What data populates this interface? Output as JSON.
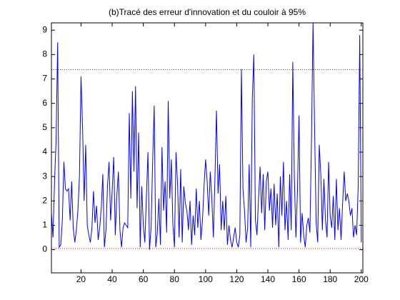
{
  "chart_data": {
    "type": "line",
    "title": "(b)Tracé des erreur d'innovation et du couloir à 95%",
    "x": [
      1,
      2,
      3,
      4,
      5,
      6,
      7,
      8,
      9,
      10,
      11,
      12,
      13,
      14,
      15,
      16,
      17,
      18,
      19,
      20,
      21,
      22,
      23,
      24,
      25,
      26,
      27,
      28,
      29,
      30,
      31,
      32,
      33,
      34,
      35,
      36,
      37,
      38,
      39,
      40,
      41,
      42,
      43,
      44,
      45,
      46,
      47,
      48,
      49,
      50,
      51,
      52,
      53,
      54,
      55,
      56,
      57,
      58,
      59,
      60,
      61,
      62,
      63,
      64,
      65,
      66,
      67,
      68,
      69,
      70,
      71,
      72,
      73,
      74,
      75,
      76,
      77,
      78,
      79,
      80,
      81,
      82,
      83,
      84,
      85,
      86,
      87,
      88,
      89,
      90,
      91,
      92,
      93,
      94,
      95,
      96,
      97,
      98,
      99,
      100,
      101,
      102,
      103,
      104,
      105,
      106,
      107,
      108,
      109,
      110,
      111,
      112,
      113,
      114,
      115,
      116,
      117,
      118,
      119,
      120,
      121,
      122,
      123,
      124,
      125,
      126,
      127,
      128,
      129,
      130,
      131,
      132,
      133,
      134,
      135,
      136,
      137,
      138,
      139,
      140,
      141,
      142,
      143,
      144,
      145,
      146,
      147,
      148,
      149,
      150,
      151,
      152,
      153,
      154,
      155,
      156,
      157,
      158,
      159,
      160,
      161,
      162,
      163,
      164,
      165,
      166,
      167,
      168,
      169,
      170,
      171,
      172,
      173,
      174,
      175,
      176,
      177,
      178,
      179,
      180,
      181,
      182,
      183,
      184,
      185,
      186,
      187,
      188,
      189,
      190,
      191,
      192,
      193,
      194,
      195,
      196,
      197,
      198,
      199,
      200
    ],
    "series": [
      {
        "color": "#0000ff",
        "values": [
          1.5,
          0.5,
          2.8,
          4.5,
          8.5,
          0.1,
          0.2,
          1.2,
          3.6,
          2.5,
          2.4,
          2.5,
          1.2,
          2.8,
          0.9,
          0.3,
          0.8,
          1.6,
          3.0,
          7.1,
          5.0,
          2.0,
          4.3,
          1.0,
          0.6,
          0.3,
          0.9,
          2.4,
          1.1,
          1.8,
          0.4,
          0.9,
          1.7,
          3.1,
          0.1,
          0.8,
          2.6,
          3.6,
          1.2,
          2.4,
          3.8,
          0.6,
          2.2,
          3.2,
          0.8,
          0.1,
          0.9,
          1.1,
          1.0,
          0.9,
          5.6,
          2.1,
          6.5,
          3.2,
          6.7,
          1.7,
          4.8,
          0.1,
          2.6,
          1.0,
          0.3,
          2.2,
          4.0,
          0.0,
          0.9,
          3.6,
          5.9,
          0.1,
          0.7,
          2.1,
          0.2,
          4.2,
          1.6,
          2.8,
          0.7,
          6.1,
          2.1,
          3.7,
          1.0,
          0.1,
          4.0,
          2.7,
          0.5,
          3.3,
          0.3,
          2.6,
          1.9,
          1.6,
          0.8,
          2.0,
          0.2,
          1.4,
          0.6,
          2.5,
          0.9,
          2.0,
          0.4,
          1.2,
          2.6,
          3.7,
          2.8,
          1.4,
          3.2,
          2.1,
          0.5,
          2.9,
          5.7,
          2.3,
          3.5,
          0.8,
          2.0,
          0.8,
          2.2,
          0.2,
          1.0,
          0.4,
          0.1,
          0.5,
          0.9,
          0.3,
          0.1,
          0.6,
          7.4,
          2.5,
          1.6,
          0.3,
          0.9,
          3.5,
          0.1,
          6.2,
          8.0,
          1.2,
          0.6,
          2.1,
          3.4,
          1.5,
          3.1,
          0.8,
          2.8,
          3.2,
          1.6,
          2.5,
          0.9,
          2.7,
          1.0,
          2.3,
          0.1,
          3.0,
          1.4,
          3.6,
          0.8,
          2.0,
          0.4,
          3.1,
          0.8,
          7.7,
          3.0,
          0.5,
          2.4,
          5.5,
          0.3,
          1.5,
          0.6,
          0.1,
          1.0,
          1.3,
          0.7,
          4.5,
          9.3,
          5.0,
          1.1,
          0.3,
          4.3,
          3.1,
          0.8,
          2.9,
          1.2,
          0.5,
          3.6,
          1.4,
          0.9,
          2.2,
          0.4,
          2.9,
          0.8,
          1.7,
          0.4,
          1.9,
          3.2,
          2.0,
          2.3,
          2.0,
          1.4,
          1.7,
          0.5,
          1.0,
          0.6,
          2.6,
          8.8,
          0.3
        ]
      }
    ],
    "hlines": [
      {
        "value": 7.38,
        "color": "#ff0000"
      },
      {
        "value": 0.05,
        "color": "#ff0000"
      }
    ],
    "xlim": [
      1,
      201
    ],
    "ylim": [
      -0.95,
      9.3
    ],
    "xticks": [
      20,
      40,
      60,
      80,
      100,
      120,
      140,
      160,
      180,
      200
    ],
    "yticks": [
      0,
      1,
      2,
      3,
      4,
      5,
      6,
      7,
      8,
      9
    ]
  }
}
